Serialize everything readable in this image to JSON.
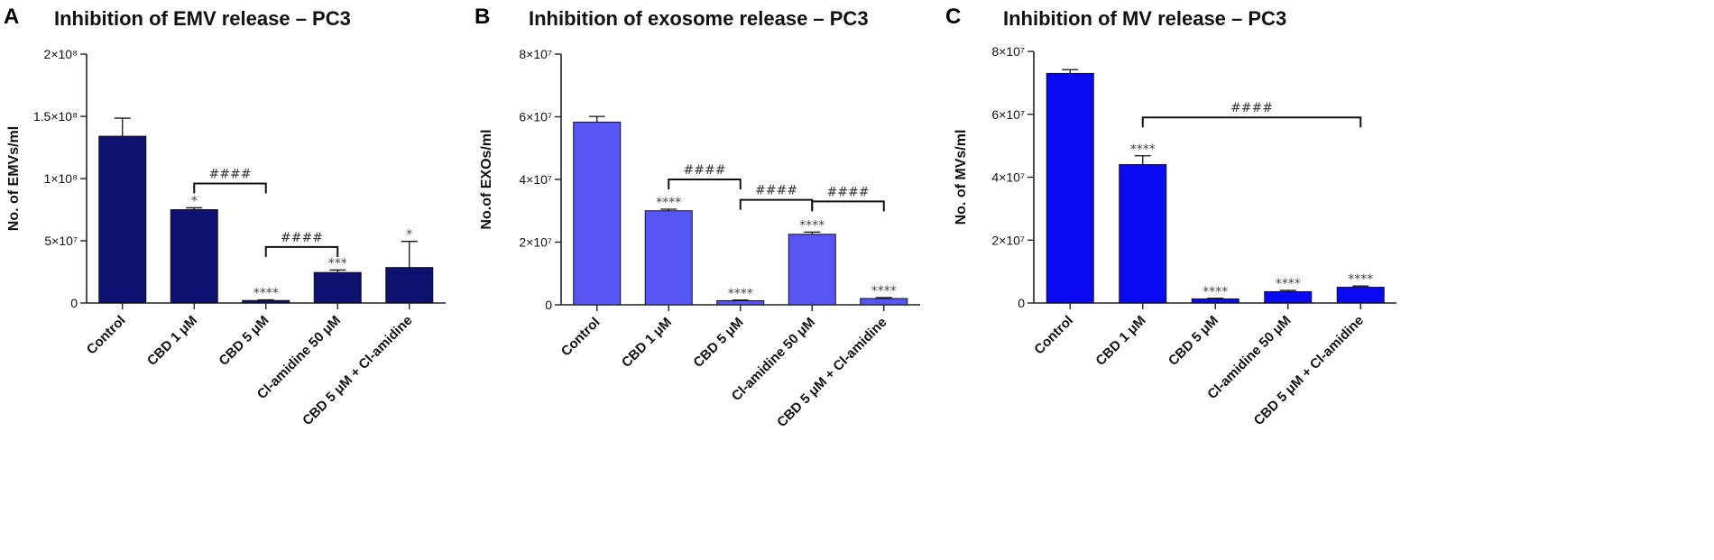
{
  "chart_data": [
    {
      "type": "bar",
      "panel": "A",
      "title": "Inhibition of EMV release – PC3",
      "xlabel": "",
      "ylabel": "No. of EMVs/ml",
      "ylim": [
        0,
        200000000
      ],
      "yticks": [
        {
          "value": 0,
          "label": "0"
        },
        {
          "value": 50000000,
          "label": "5×10⁷"
        },
        {
          "value": 100000000,
          "label": "1×10⁸"
        },
        {
          "value": 150000000,
          "label": "1.5×10⁸"
        },
        {
          "value": 200000000,
          "label": "2×10⁸"
        }
      ],
      "categories": [
        "Control",
        "CBD 1 μM",
        "CBD 5 μM",
        "Cl-amidine 50 μM",
        "CBD 5 μM + Cl-amidine"
      ],
      "values": [
        134000000,
        75000000,
        2000000,
        24500000,
        28500000
      ],
      "errors": [
        14500000,
        1500000,
        500000,
        2000000,
        21000000
      ],
      "annotations": [
        "",
        "*",
        "****",
        "***",
        "*"
      ],
      "brackets": [
        {
          "from": 1,
          "to": 2,
          "y": 96000000,
          "label": "####"
        },
        {
          "from": 2,
          "to": 3,
          "y": 45000000,
          "label": "####"
        }
      ],
      "color": "#0d1170",
      "grid": false,
      "legend": "none"
    },
    {
      "type": "bar",
      "panel": "B",
      "title": "Inhibition of exosome release – PC3",
      "xlabel": "",
      "ylabel": "No.of EXOs/ml",
      "ylim": [
        0,
        80000000
      ],
      "yticks": [
        {
          "value": 0,
          "label": "0"
        },
        {
          "value": 20000000,
          "label": "2×10⁷"
        },
        {
          "value": 40000000,
          "label": "4×10⁷"
        },
        {
          "value": 60000000,
          "label": "6×10⁷"
        },
        {
          "value": 80000000,
          "label": "8×10⁷"
        }
      ],
      "categories": [
        "Control",
        "CBD 1 μM",
        "CBD 5 μM",
        "Cl-amidine 50 μM",
        "CBD 5 μM + Cl-amidine"
      ],
      "values": [
        58300000,
        30000000,
        1300000,
        22500000,
        2000000
      ],
      "errors": [
        1800000,
        500000,
        200000,
        700000,
        300000
      ],
      "annotations": [
        "",
        "****",
        "****",
        "****",
        "****"
      ],
      "brackets": [
        {
          "from": 1,
          "to": 2,
          "y": 40000000,
          "label": "####"
        },
        {
          "from": 2,
          "to": 3,
          "y": 33500000,
          "label": "####"
        },
        {
          "from": 3,
          "to": 4,
          "y": 33000000,
          "label": "####"
        }
      ],
      "color": "#5656f5",
      "grid": false,
      "legend": "none"
    },
    {
      "type": "bar",
      "panel": "C",
      "title": "Inhibition of MV release – PC3",
      "xlabel": "",
      "ylabel": "No. of MVs/ml",
      "ylim": [
        0,
        80000000
      ],
      "yticks": [
        {
          "value": 0,
          "label": "0"
        },
        {
          "value": 20000000,
          "label": "2×10⁷"
        },
        {
          "value": 40000000,
          "label": "4×10⁷"
        },
        {
          "value": 60000000,
          "label": "6×10⁷"
        },
        {
          "value": 80000000,
          "label": "8×10⁷"
        }
      ],
      "categories": [
        "Control",
        "CBD 1 μM",
        "CBD 5 μM",
        "Cl-amidine 50 μM",
        "CBD 5 μM + Cl-amidine"
      ],
      "values": [
        73000000,
        44000000,
        1300000,
        3600000,
        5000000
      ],
      "errors": [
        1200000,
        2800000,
        200000,
        400000,
        400000
      ],
      "annotations": [
        "",
        "****",
        "****",
        "****",
        "****"
      ],
      "brackets": [
        {
          "from": 1,
          "to": 4,
          "y": 59000000,
          "label": "####"
        }
      ],
      "color": "#0a0af0",
      "grid": false,
      "legend": "none"
    }
  ]
}
